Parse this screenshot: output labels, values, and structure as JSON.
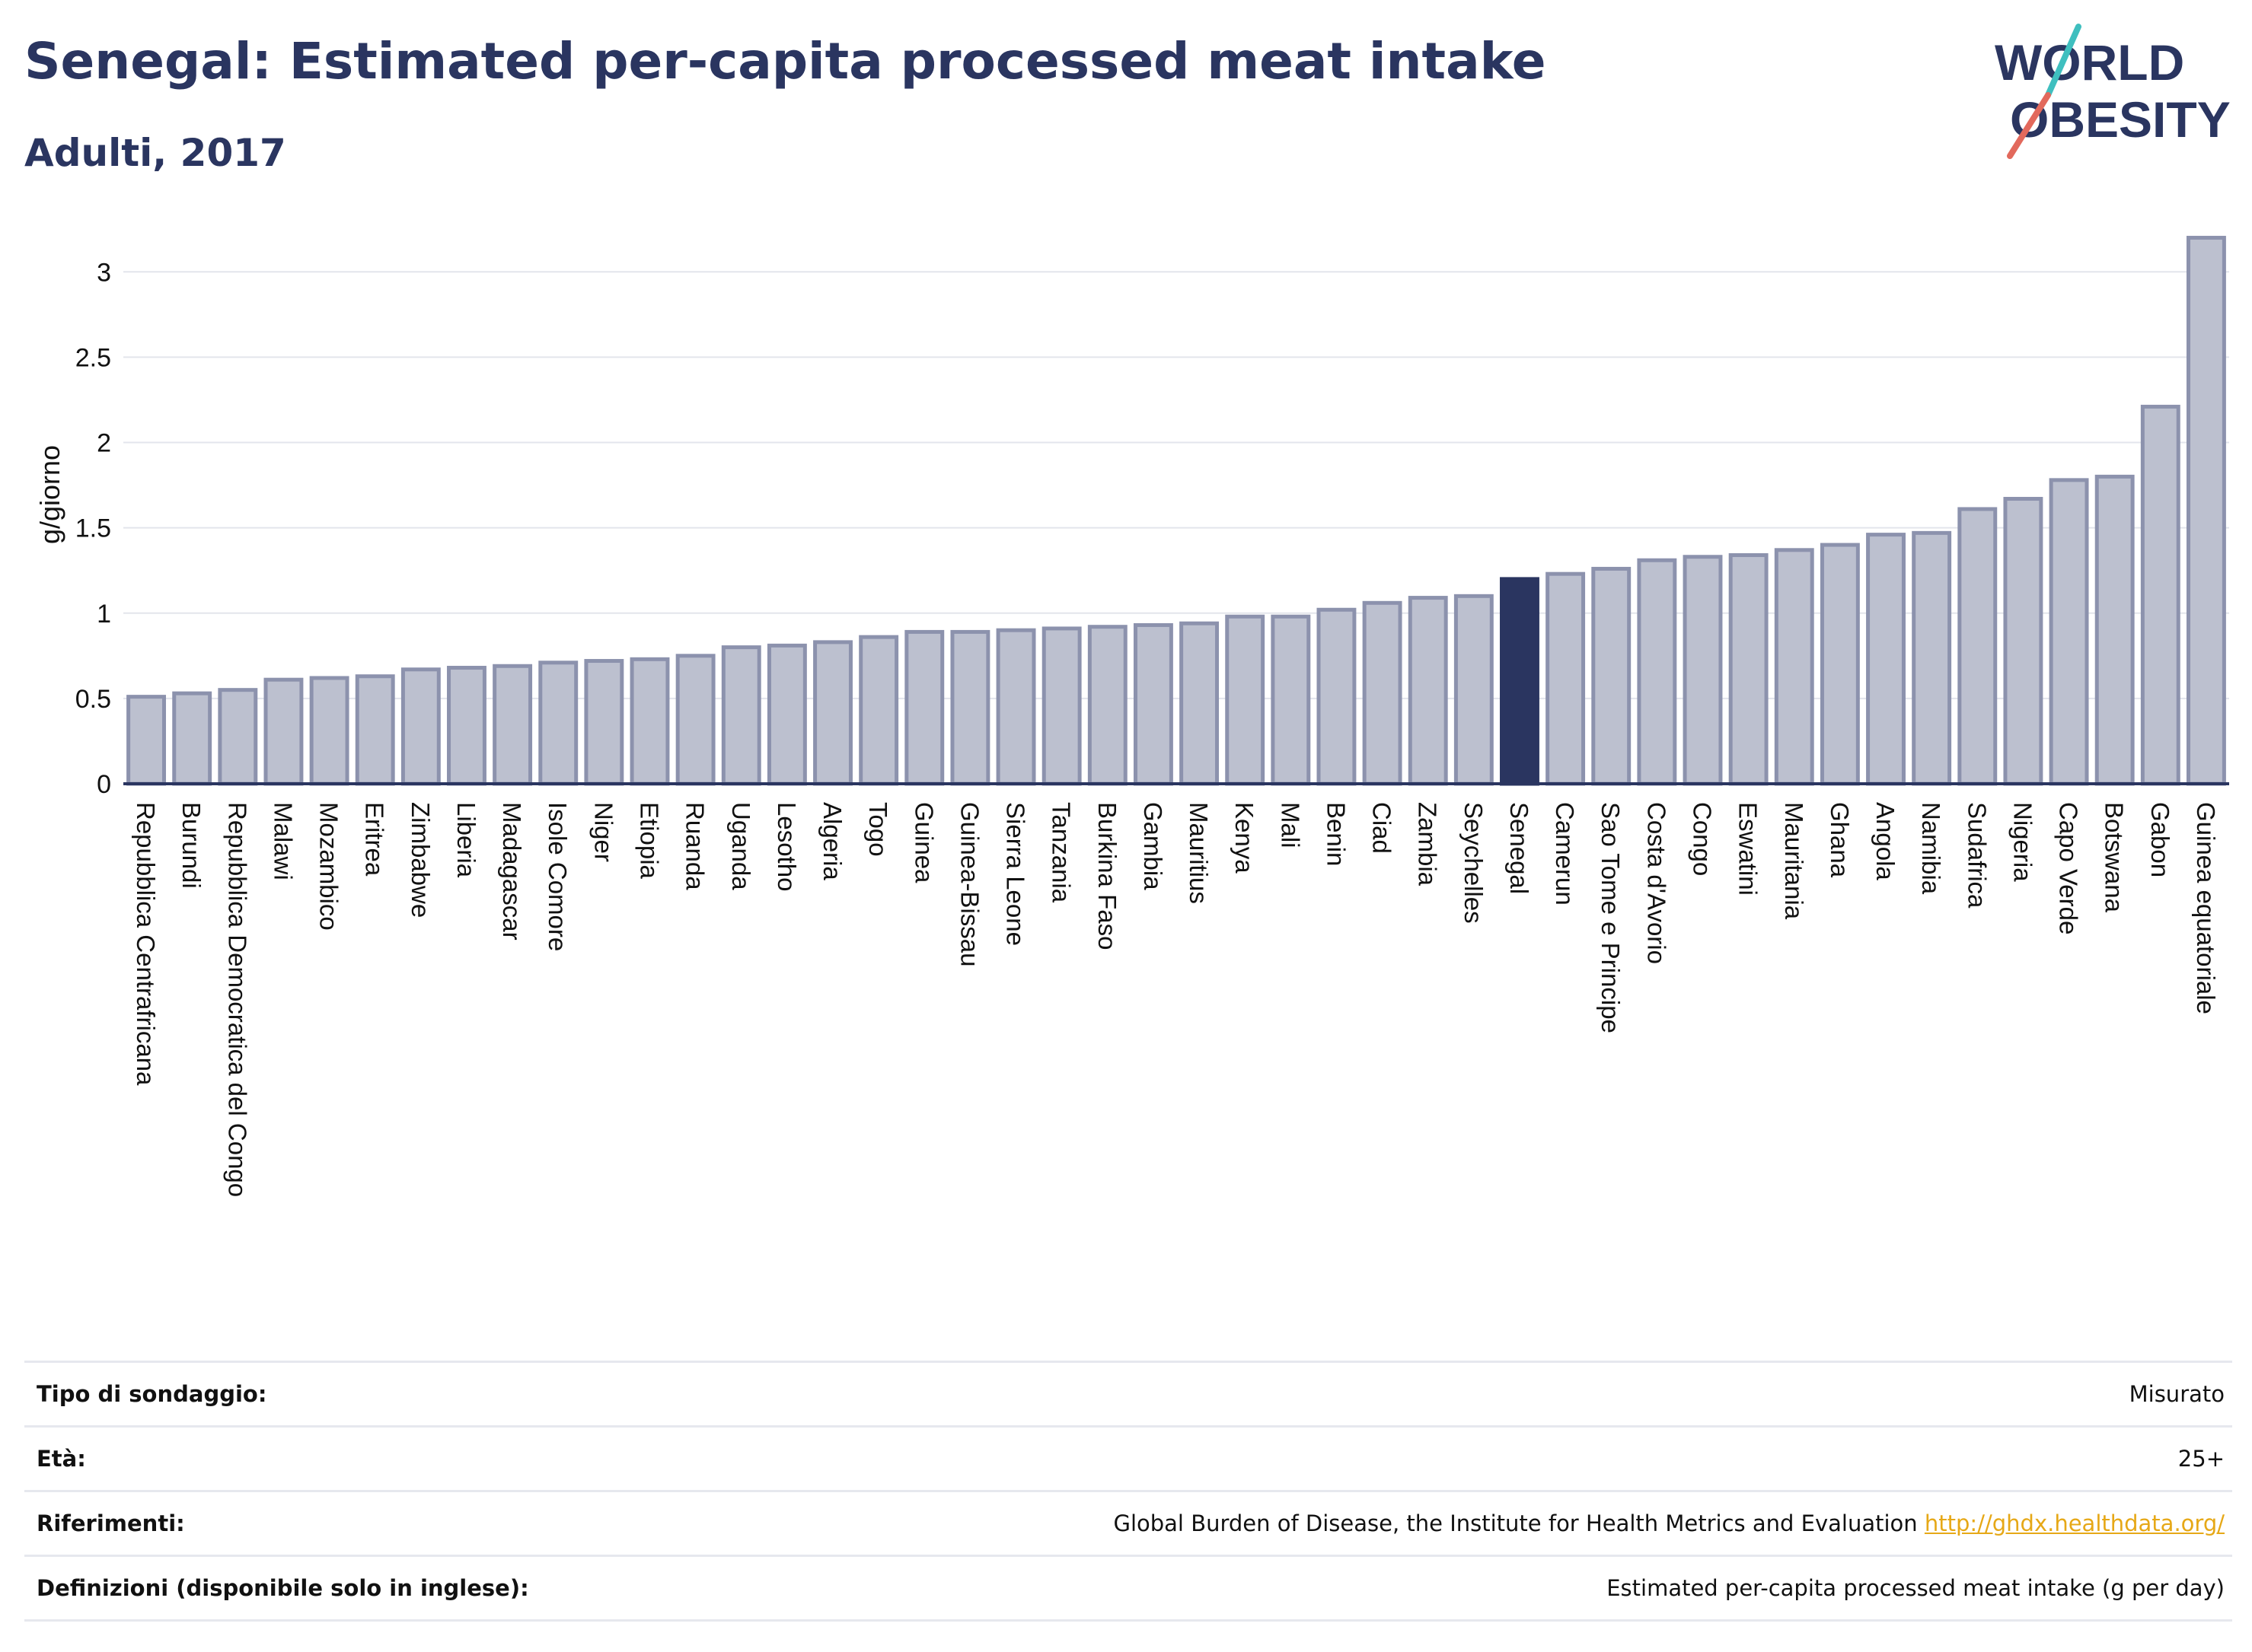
{
  "header": {
    "title": "Senegal: Estimated per-capita processed meat intake",
    "subtitle": "Adulti, 2017"
  },
  "logo": {
    "line1": "WORLD",
    "line2": "OBESITY"
  },
  "colors": {
    "bar": "#bcc0cf",
    "bar_border": "#8c92ad",
    "highlight": "#2a3560",
    "grid": "#e3e5ec",
    "axis": "#2a3560"
  },
  "chart_data": {
    "type": "bar",
    "ylabel": "g/giorno",
    "ylim": [
      0,
      3.3
    ],
    "yticks": [
      "0",
      "0.5",
      "1",
      "1.5",
      "2",
      "2.5",
      "3"
    ],
    "highlight": "Senegal",
    "categories": [
      "Repubblica Centrafricana",
      "Burundi",
      "Repubblica Democratica del Congo",
      "Malawi",
      "Mozambico",
      "Eritrea",
      "Zimbabwe",
      "Liberia",
      "Madagascar",
      "Isole Comore",
      "Niger",
      "Etiopia",
      "Ruanda",
      "Uganda",
      "Lesotho",
      "Algeria",
      "Togo",
      "Guinea",
      "Guinea-Bissau",
      "Sierra Leone",
      "Tanzania",
      "Burkina Faso",
      "Gambia",
      "Mauritius",
      "Kenya",
      "Mali",
      "Benin",
      "Ciad",
      "Zambia",
      "Seychelles",
      "Senegal",
      "Camerun",
      "Sao Tome e Principe",
      "Costa d'Avorio",
      "Congo",
      "Eswatini",
      "Mauritania",
      "Ghana",
      "Angola",
      "Namibia",
      "Sudafrica",
      "Nigeria",
      "Capo Verde",
      "Botswana",
      "Gabon",
      "Guinea equatoriale"
    ],
    "values": [
      0.51,
      0.53,
      0.55,
      0.61,
      0.62,
      0.63,
      0.67,
      0.68,
      0.69,
      0.71,
      0.72,
      0.73,
      0.75,
      0.8,
      0.81,
      0.83,
      0.86,
      0.89,
      0.89,
      0.9,
      0.91,
      0.92,
      0.93,
      0.94,
      0.98,
      0.98,
      1.02,
      1.06,
      1.09,
      1.1,
      1.2,
      1.23,
      1.26,
      1.31,
      1.33,
      1.34,
      1.37,
      1.4,
      1.46,
      1.47,
      1.61,
      1.67,
      1.78,
      1.8,
      2.21,
      3.2
    ]
  },
  "footer": {
    "rows": [
      {
        "label": "Tipo di sondaggio:",
        "value": "Misurato"
      },
      {
        "label": "Età:",
        "value": "25+"
      },
      {
        "label": "Riferimenti:",
        "value": "Global Burden of Disease, the Institute for Health Metrics and Evaluation",
        "link": "http://ghdx.healthdata.org/"
      },
      {
        "label": "Definizioni (disponibile solo in inglese):",
        "value": "Estimated per-capita processed meat intake (g per day)"
      }
    ]
  }
}
